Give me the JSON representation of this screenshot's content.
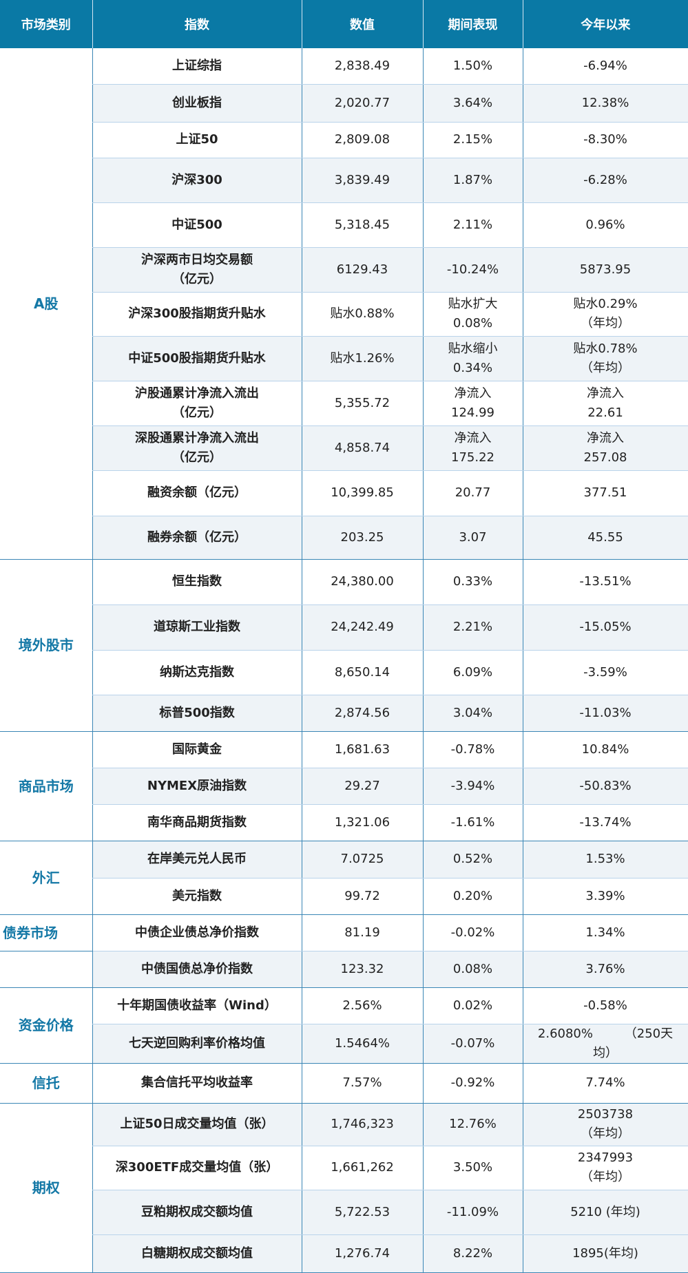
{
  "header": [
    "市场类别",
    "指数",
    "数值",
    "期间表现",
    "今年以来"
  ],
  "sections": [
    {
      "category": "A股",
      "rows": [
        {
          "name": "上证综指",
          "value": "2,838.49",
          "period": "1.50%",
          "ytd": "-6.94%",
          "h": 52,
          "s": 0
        },
        {
          "name": "创业板指",
          "value": "2,020.77",
          "period": "3.64%",
          "ytd": "12.38%",
          "h": 55,
          "s": 1
        },
        {
          "name": "上证50",
          "value": "2,809.08",
          "period": "2.15%",
          "ytd": "-8.30%",
          "h": 52,
          "s": 0
        },
        {
          "name": "沪深300",
          "value": "3,839.49",
          "period": "1.87%",
          "ytd": "-6.28%",
          "h": 65,
          "s": 1
        },
        {
          "name": "中证500",
          "value": "5,318.45",
          "period": "2.11%",
          "ytd": "0.96%",
          "h": 65,
          "s": 0
        },
        {
          "name": "沪深两市日均交易额\n（亿元）",
          "value": "6129.43",
          "period": "-10.24%",
          "ytd": "5873.95",
          "h": 65,
          "s": 1
        },
        {
          "name": "沪深300股指期货升贴水",
          "value": "贴水0.88%",
          "period": "贴水扩大\n0.08%",
          "ytd": "贴水0.29%\n（年均）",
          "h": 64,
          "s": 0
        },
        {
          "name": "中证500股指期货升贴水",
          "value": "贴水1.26%",
          "period": "贴水缩小\n0.34%",
          "ytd": "贴水0.78%\n（年均）",
          "h": 65,
          "s": 1
        },
        {
          "name": "沪股通累计净流入流出\n（亿元）",
          "value": "5,355.72",
          "period": "净流入\n124.99",
          "ytd": "净流入\n22.61",
          "h": 65,
          "s": 0
        },
        {
          "name": "深股通累计净流入流出\n（亿元）",
          "value": "4,858.74",
          "period": "净流入\n175.22",
          "ytd": "净流入\n257.08",
          "h": 65,
          "s": 1
        },
        {
          "name": "融资余额（亿元）",
          "value": "10,399.85",
          "period": "20.77",
          "ytd": "377.51",
          "h": 66,
          "s": 0
        },
        {
          "name": "融券余额（亿元）",
          "value": "203.25",
          "period": "3.07",
          "ytd": "45.55",
          "h": 63,
          "s": 1
        }
      ]
    },
    {
      "category": "境外股市",
      "rows": [
        {
          "name": "恒生指数",
          "value": "24,380.00",
          "period": "0.33%",
          "ytd": "-13.51%",
          "h": 66,
          "s": 0
        },
        {
          "name": "道琼斯工业指数",
          "value": "24,242.49",
          "period": "2.21%",
          "ytd": "-15.05%",
          "h": 66,
          "s": 1
        },
        {
          "name": "纳斯达克指数",
          "value": "8,650.14",
          "period": "6.09%",
          "ytd": "-3.59%",
          "h": 65,
          "s": 0
        },
        {
          "name": "标普500指数",
          "value": "2,874.56",
          "period": "3.04%",
          "ytd": "-11.03%",
          "h": 53,
          "s": 1
        }
      ]
    },
    {
      "category": "商品市场",
      "rows": [
        {
          "name": "国际黄金",
          "value": "1,681.63",
          "period": "-0.78%",
          "ytd": "10.84%",
          "h": 53,
          "s": 0
        },
        {
          "name": "NYMEX原油指数",
          "value": "29.27",
          "period": "-3.94%",
          "ytd": "-50.83%",
          "h": 53,
          "s": 1
        },
        {
          "name": "南华商品期货指数",
          "value": "1,321.06",
          "period": "-1.61%",
          "ytd": "-13.74%",
          "h": 53,
          "s": 0
        }
      ]
    },
    {
      "category": "外汇",
      "rows": [
        {
          "name": "在岸美元兑人民币",
          "value": "7.0725",
          "period": "0.52%",
          "ytd": "1.53%",
          "h": 54,
          "s": 1
        },
        {
          "name": "美元指数",
          "value": "99.72",
          "period": "0.20%",
          "ytd": "3.39%",
          "h": 53,
          "s": 0
        }
      ]
    },
    {
      "category": "债券市场",
      "split": true,
      "rows": [
        {
          "name": "中债企业债总净价指数",
          "value": "81.19",
          "period": "-0.02%",
          "ytd": "1.34%",
          "h": 53,
          "s": 0
        },
        {
          "name": "中债国债总净价指数",
          "value": "123.32",
          "period": "0.08%",
          "ytd": "3.76%",
          "h": 53,
          "s": 1
        }
      ]
    },
    {
      "category": "资金价格",
      "rows": [
        {
          "name": "十年期国债收益率（Wind）",
          "value": "2.56%",
          "period": "0.02%",
          "ytd": "-0.58%",
          "h": 53,
          "s": 0
        },
        {
          "name": "七天逆回购利率价格均值",
          "value": "1.5464%",
          "period": "-0.07%",
          "ytd": "2.6080%        （250天\n均）",
          "h": 53,
          "s": 1
        }
      ]
    },
    {
      "category": "信托",
      "rows": [
        {
          "name": "集合信托平均收益率",
          "value": "7.57%",
          "period": "-0.92%",
          "ytd": "7.74%",
          "h": 58,
          "s": 0
        }
      ]
    },
    {
      "category": "期权",
      "rows": [
        {
          "name": "上证50日成交量均值（张）",
          "value": "1,746,323",
          "period": "12.76%",
          "ytd": "2503738\n（年均）",
          "h": 62,
          "s": 1
        },
        {
          "name": "深300ETF成交量均值（张）",
          "value": "1,661,262",
          "period": "3.50%",
          "ytd": "2347993\n（年均）",
          "h": 64,
          "s": 0
        },
        {
          "name": "豆粕期权成交额均值",
          "value": "5,722.53",
          "period": "-11.09%",
          "ytd": "5210 (年均)",
          "h": 65,
          "s": 1
        },
        {
          "name": "白糖期权成交额均值",
          "value": "1,276.74",
          "period": "8.22%",
          "ytd": "1895(年均)",
          "h": 55,
          "s": 1
        }
      ]
    }
  ]
}
